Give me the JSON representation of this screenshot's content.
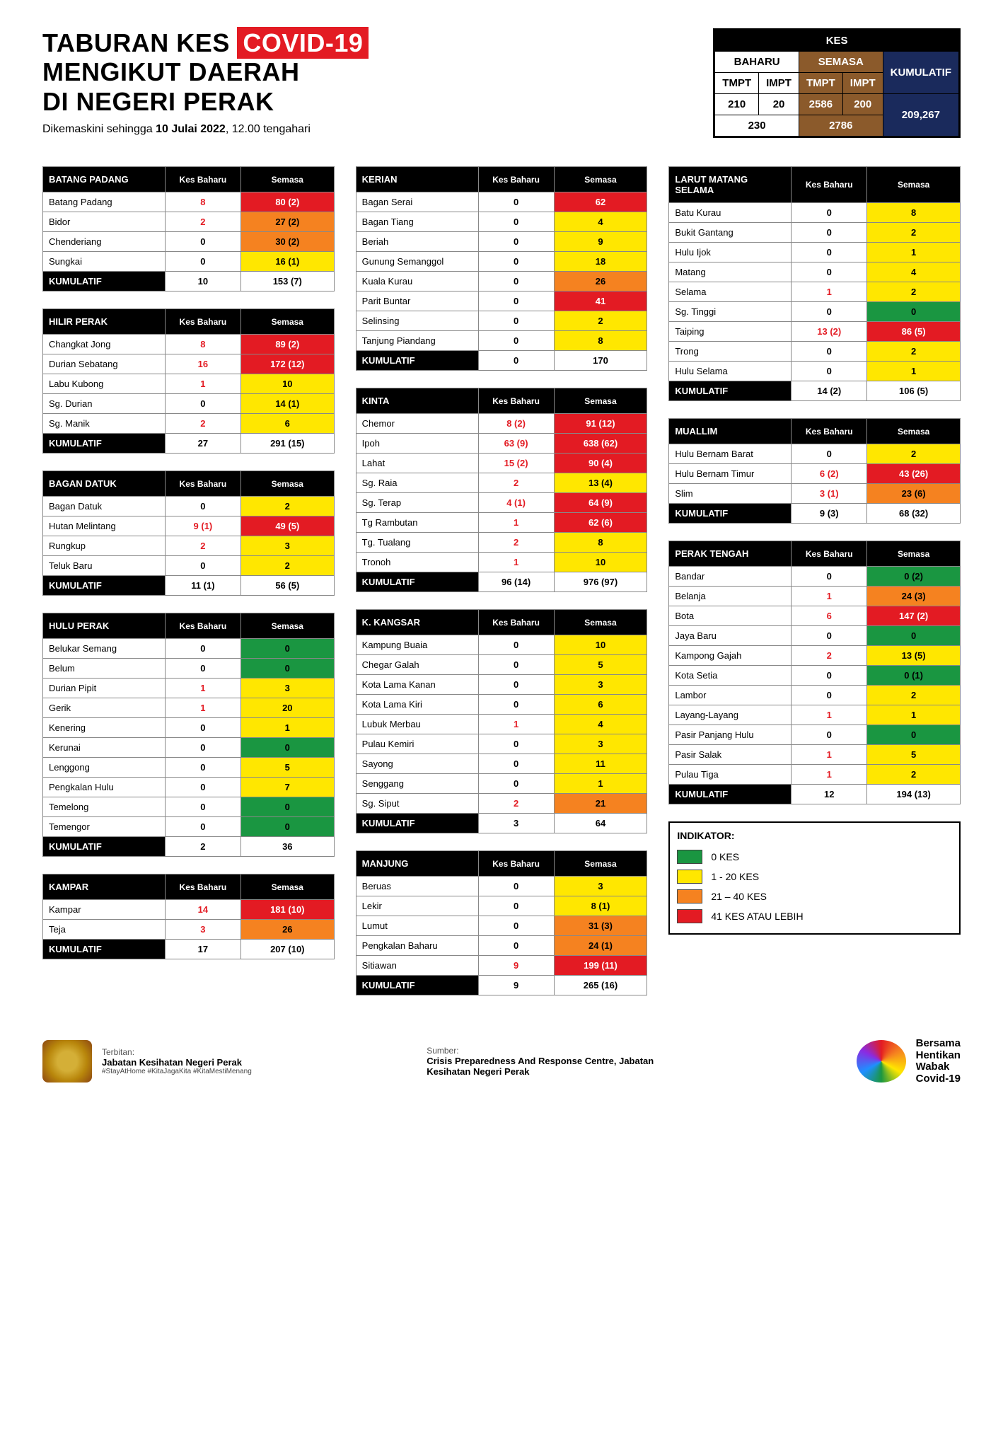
{
  "title": {
    "l1a": "TABURAN KES",
    "covid": "COVID-19",
    "l2": "MENGIKUT DAERAH",
    "l3": "DI NEGERI PERAK"
  },
  "subtitle": {
    "prefix": "Dikemaskini sehingga ",
    "date": "10 Julai 2022",
    "time": ", 12.00 tengahari"
  },
  "summary": {
    "kes": "KES",
    "baharu": "BAHARU",
    "semasa": "SEMASA",
    "kumulatif": "KUMULATIF",
    "tmpt": "TMPT",
    "impt": "IMPT",
    "b_tmpt": "210",
    "b_impt": "20",
    "s_tmpt": "2586",
    "s_impt": "200",
    "b_total": "230",
    "s_total": "2786",
    "kum_total": "209,267"
  },
  "colors": {
    "green": "#1a9641",
    "yellow": "#ffe700",
    "orange": "#f58220",
    "red": "#e31b23"
  },
  "legend": {
    "title": "INDIKATOR:",
    "items": [
      {
        "color": "green",
        "label": "0 KES"
      },
      {
        "color": "yellow",
        "label": "1 - 20 KES"
      },
      {
        "color": "orange",
        "label": "21 – 40 KES"
      },
      {
        "color": "red",
        "label": "41 KES ATAU LEBIH"
      }
    ]
  },
  "hdrs": {
    "baharu": "Kes Baharu",
    "semasa": "Semasa",
    "kum": "KUMULATIF"
  },
  "districts": [
    {
      "col": 0,
      "name": "BATANG PADANG",
      "rows": [
        {
          "n": "Batang Padang",
          "b": "8",
          "br": 1,
          "s": "80 (2)",
          "c": "red"
        },
        {
          "n": "Bidor",
          "b": "2",
          "br": 1,
          "s": "27 (2)",
          "c": "orange"
        },
        {
          "n": "Chenderiang",
          "b": "0",
          "br": 0,
          "s": "30 (2)",
          "c": "orange"
        },
        {
          "n": "Sungkai",
          "b": "0",
          "br": 0,
          "s": "16 (1)",
          "c": "yellow"
        }
      ],
      "kum": {
        "b": "10",
        "s": "153 (7)"
      }
    },
    {
      "col": 0,
      "name": "HILIR PERAK",
      "rows": [
        {
          "n": "Changkat Jong",
          "b": "8",
          "br": 1,
          "s": "89 (2)",
          "c": "red"
        },
        {
          "n": "Durian Sebatang",
          "b": "16",
          "br": 1,
          "s": "172 (12)",
          "c": "red"
        },
        {
          "n": "Labu Kubong",
          "b": "1",
          "br": 1,
          "s": "10",
          "c": "yellow"
        },
        {
          "n": "Sg. Durian",
          "b": "0",
          "br": 0,
          "s": "14 (1)",
          "c": "yellow"
        },
        {
          "n": "Sg. Manik",
          "b": "2",
          "br": 1,
          "s": "6",
          "c": "yellow"
        }
      ],
      "kum": {
        "b": "27",
        "s": "291 (15)"
      }
    },
    {
      "col": 0,
      "name": "BAGAN DATUK",
      "rows": [
        {
          "n": "Bagan Datuk",
          "b": "0",
          "br": 0,
          "s": "2",
          "c": "yellow"
        },
        {
          "n": "Hutan Melintang",
          "b": "9 (1)",
          "br": 1,
          "s": "49 (5)",
          "c": "red"
        },
        {
          "n": "Rungkup",
          "b": "2",
          "br": 1,
          "s": "3",
          "c": "yellow"
        },
        {
          "n": "Teluk Baru",
          "b": "0",
          "br": 0,
          "s": "2",
          "c": "yellow"
        }
      ],
      "kum": {
        "b": "11 (1)",
        "s": "56 (5)"
      }
    },
    {
      "col": 0,
      "name": "HULU PERAK",
      "rows": [
        {
          "n": "Belukar Semang",
          "b": "0",
          "br": 0,
          "s": "0",
          "c": "green"
        },
        {
          "n": "Belum",
          "b": "0",
          "br": 0,
          "s": "0",
          "c": "green"
        },
        {
          "n": "Durian Pipit",
          "b": "1",
          "br": 1,
          "s": "3",
          "c": "yellow"
        },
        {
          "n": "Gerik",
          "b": "1",
          "br": 1,
          "s": "20",
          "c": "yellow"
        },
        {
          "n": "Kenering",
          "b": "0",
          "br": 0,
          "s": "1",
          "c": "yellow"
        },
        {
          "n": "Kerunai",
          "b": "0",
          "br": 0,
          "s": "0",
          "c": "green"
        },
        {
          "n": "Lenggong",
          "b": "0",
          "br": 0,
          "s": "5",
          "c": "yellow"
        },
        {
          "n": "Pengkalan Hulu",
          "b": "0",
          "br": 0,
          "s": "7",
          "c": "yellow"
        },
        {
          "n": "Temelong",
          "b": "0",
          "br": 0,
          "s": "0",
          "c": "green"
        },
        {
          "n": "Temengor",
          "b": "0",
          "br": 0,
          "s": "0",
          "c": "green"
        }
      ],
      "kum": {
        "b": "2",
        "s": "36"
      }
    },
    {
      "col": 0,
      "name": "KAMPAR",
      "rows": [
        {
          "n": "Kampar",
          "b": "14",
          "br": 1,
          "s": "181 (10)",
          "c": "red"
        },
        {
          "n": "Teja",
          "b": "3",
          "br": 1,
          "s": "26",
          "c": "orange"
        }
      ],
      "kum": {
        "b": "17",
        "s": "207 (10)"
      }
    },
    {
      "col": 1,
      "name": "KERIAN",
      "rows": [
        {
          "n": "Bagan Serai",
          "b": "0",
          "br": 0,
          "s": "62",
          "c": "red"
        },
        {
          "n": "Bagan Tiang",
          "b": "0",
          "br": 0,
          "s": "4",
          "c": "yellow"
        },
        {
          "n": "Beriah",
          "b": "0",
          "br": 0,
          "s": "9",
          "c": "yellow"
        },
        {
          "n": "Gunung Semanggol",
          "b": "0",
          "br": 0,
          "s": "18",
          "c": "yellow"
        },
        {
          "n": "Kuala Kurau",
          "b": "0",
          "br": 0,
          "s": "26",
          "c": "orange"
        },
        {
          "n": "Parit Buntar",
          "b": "0",
          "br": 0,
          "s": "41",
          "c": "red"
        },
        {
          "n": "Selinsing",
          "b": "0",
          "br": 0,
          "s": "2",
          "c": "yellow"
        },
        {
          "n": "Tanjung Piandang",
          "b": "0",
          "br": 0,
          "s": "8",
          "c": "yellow"
        }
      ],
      "kum": {
        "b": "0",
        "s": "170"
      }
    },
    {
      "col": 1,
      "name": "KINTA",
      "rows": [
        {
          "n": "Chemor",
          "b": "8 (2)",
          "br": 1,
          "s": "91 (12)",
          "c": "red"
        },
        {
          "n": "Ipoh",
          "b": "63 (9)",
          "br": 1,
          "s": "638 (62)",
          "c": "red"
        },
        {
          "n": "Lahat",
          "b": "15 (2)",
          "br": 1,
          "s": "90 (4)",
          "c": "red"
        },
        {
          "n": "Sg. Raia",
          "b": "2",
          "br": 1,
          "s": "13 (4)",
          "c": "yellow"
        },
        {
          "n": "Sg. Terap",
          "b": "4 (1)",
          "br": 1,
          "s": "64 (9)",
          "c": "red"
        },
        {
          "n": "Tg Rambutan",
          "b": "1",
          "br": 1,
          "s": "62 (6)",
          "c": "red"
        },
        {
          "n": "Tg. Tualang",
          "b": "2",
          "br": 1,
          "s": "8",
          "c": "yellow"
        },
        {
          "n": "Tronoh",
          "b": "1",
          "br": 1,
          "s": "10",
          "c": "yellow"
        }
      ],
      "kum": {
        "b": "96 (14)",
        "s": "976 (97)"
      }
    },
    {
      "col": 1,
      "name": "K. KANGSAR",
      "rows": [
        {
          "n": "Kampung Buaia",
          "b": "0",
          "br": 0,
          "s": "10",
          "c": "yellow"
        },
        {
          "n": "Chegar Galah",
          "b": "0",
          "br": 0,
          "s": "5",
          "c": "yellow"
        },
        {
          "n": "Kota Lama Kanan",
          "b": "0",
          "br": 0,
          "s": "3",
          "c": "yellow"
        },
        {
          "n": "Kota Lama Kiri",
          "b": "0",
          "br": 0,
          "s": "6",
          "c": "yellow"
        },
        {
          "n": "Lubuk Merbau",
          "b": "1",
          "br": 1,
          "s": "4",
          "c": "yellow"
        },
        {
          "n": "Pulau Kemiri",
          "b": "0",
          "br": 0,
          "s": "3",
          "c": "yellow"
        },
        {
          "n": "Sayong",
          "b": "0",
          "br": 0,
          "s": "11",
          "c": "yellow"
        },
        {
          "n": "Senggang",
          "b": "0",
          "br": 0,
          "s": "1",
          "c": "yellow"
        },
        {
          "n": "Sg. Siput",
          "b": "2",
          "br": 1,
          "s": "21",
          "c": "orange"
        }
      ],
      "kum": {
        "b": "3",
        "s": "64"
      }
    },
    {
      "col": 1,
      "name": "MANJUNG",
      "rows": [
        {
          "n": "Beruas",
          "b": "0",
          "br": 0,
          "s": "3",
          "c": "yellow"
        },
        {
          "n": "Lekir",
          "b": "0",
          "br": 0,
          "s": "8 (1)",
          "c": "yellow"
        },
        {
          "n": "Lumut",
          "b": "0",
          "br": 0,
          "s": "31 (3)",
          "c": "orange"
        },
        {
          "n": "Pengkalan Baharu",
          "b": "0",
          "br": 0,
          "s": "24 (1)",
          "c": "orange"
        },
        {
          "n": "Sitiawan",
          "b": "9",
          "br": 1,
          "s": "199 (11)",
          "c": "red"
        }
      ],
      "kum": {
        "b": "9",
        "s": "265 (16)"
      }
    },
    {
      "col": 2,
      "name": "LARUT MATANG SELAMA",
      "rows": [
        {
          "n": "Batu Kurau",
          "b": "0",
          "br": 0,
          "s": "8",
          "c": "yellow"
        },
        {
          "n": "Bukit Gantang",
          "b": "0",
          "br": 0,
          "s": "2",
          "c": "yellow"
        },
        {
          "n": "Hulu Ijok",
          "b": "0",
          "br": 0,
          "s": "1",
          "c": "yellow"
        },
        {
          "n": "Matang",
          "b": "0",
          "br": 0,
          "s": "4",
          "c": "yellow"
        },
        {
          "n": "Selama",
          "b": "1",
          "br": 1,
          "s": "2",
          "c": "yellow"
        },
        {
          "n": "Sg. Tinggi",
          "b": "0",
          "br": 0,
          "s": "0",
          "c": "green"
        },
        {
          "n": "Taiping",
          "b": "13 (2)",
          "br": 1,
          "s": "86 (5)",
          "c": "red"
        },
        {
          "n": "Trong",
          "b": "0",
          "br": 0,
          "s": "2",
          "c": "yellow"
        },
        {
          "n": "Hulu Selama",
          "b": "0",
          "br": 0,
          "s": "1",
          "c": "yellow"
        }
      ],
      "kum": {
        "b": "14 (2)",
        "s": "106 (5)"
      }
    },
    {
      "col": 2,
      "name": "MUALLIM",
      "rows": [
        {
          "n": "Hulu Bernam Barat",
          "b": "0",
          "br": 0,
          "s": "2",
          "c": "yellow"
        },
        {
          "n": "Hulu Bernam Timur",
          "b": "6 (2)",
          "br": 1,
          "s": "43 (26)",
          "c": "red"
        },
        {
          "n": "Slim",
          "b": "3 (1)",
          "br": 1,
          "s": "23 (6)",
          "c": "orange"
        }
      ],
      "kum": {
        "b": "9 (3)",
        "s": "68 (32)"
      }
    },
    {
      "col": 2,
      "name": "PERAK TENGAH",
      "rows": [
        {
          "n": "Bandar",
          "b": "0",
          "br": 0,
          "s": "0 (2)",
          "c": "green"
        },
        {
          "n": "Belanja",
          "b": "1",
          "br": 1,
          "s": "24 (3)",
          "c": "orange"
        },
        {
          "n": "Bota",
          "b": "6",
          "br": 1,
          "s": "147 (2)",
          "c": "red"
        },
        {
          "n": "Jaya Baru",
          "b": "0",
          "br": 0,
          "s": "0",
          "c": "green"
        },
        {
          "n": "Kampong Gajah",
          "b": "2",
          "br": 1,
          "s": "13 (5)",
          "c": "yellow"
        },
        {
          "n": "Kota Setia",
          "b": "0",
          "br": 0,
          "s": "0 (1)",
          "c": "green"
        },
        {
          "n": "Lambor",
          "b": "0",
          "br": 0,
          "s": "2",
          "c": "yellow"
        },
        {
          "n": "Layang-Layang",
          "b": "1",
          "br": 1,
          "s": "1",
          "c": "yellow"
        },
        {
          "n": "Pasir Panjang Hulu",
          "b": "0",
          "br": 0,
          "s": "0",
          "c": "green"
        },
        {
          "n": "Pasir Salak",
          "b": "1",
          "br": 1,
          "s": "5",
          "c": "yellow"
        },
        {
          "n": "Pulau Tiga",
          "b": "1",
          "br": 1,
          "s": "2",
          "c": "yellow"
        }
      ],
      "kum": {
        "b": "12",
        "s": "194 (13)"
      }
    }
  ],
  "footer": {
    "terbitan_lbl": "Terbitan:",
    "terbitan": "Jabatan Kesihatan Negeri Perak",
    "hash": "#StayAtHome #KitaJagaKita #KitaMestiMenang",
    "sumber_lbl": "Sumber:",
    "sumber": "Crisis Preparedness And Response Centre, Jabatan Kesihatan Negeri Perak",
    "right1": "Bersama",
    "right2": "Hentikan",
    "right3": "Wabak",
    "right4": "Covid-19"
  }
}
